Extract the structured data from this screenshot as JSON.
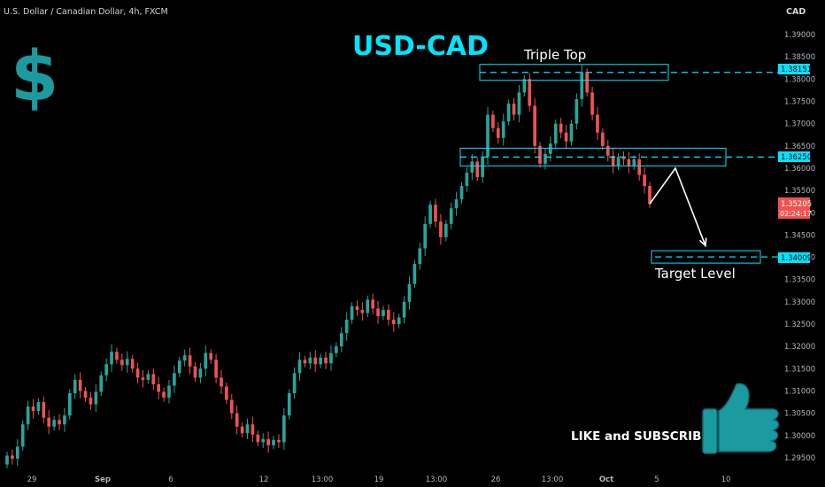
{
  "header": {
    "symbol_title": "U.S. Dollar / Canadian Dollar, 4h, FXCM",
    "currency": "CAD"
  },
  "annotations": {
    "pair": "USD-CAD",
    "dollar_symbol": "$",
    "triple_top": "Triple Top",
    "target_level": "Target Level",
    "cta": "LIKE and SUBSCRIBE"
  },
  "price_labels": {
    "resistance": "1.38151",
    "support": "1.36250",
    "last": "1.35205",
    "countdown": "02:24:17",
    "target": "1.34009"
  },
  "colors": {
    "bg": "#000000",
    "up": "#26a69a",
    "down": "#ef5350",
    "cyan": "#00e5ff",
    "teal_icon": "#1b9aa0",
    "text": "#d1d4dc"
  },
  "chart_data": {
    "type": "candlestick",
    "title": "U.S. Dollar / Canadian Dollar, 4h, FXCM",
    "y_unit": "CAD",
    "ylim": [
      1.293,
      1.3935
    ],
    "y_ticks": [
      "1.39000",
      "1.38500",
      "1.38000",
      "1.37500",
      "1.37000",
      "1.36500",
      "1.36000",
      "1.35500",
      "1.35000",
      "1.34500",
      "1.34000",
      "1.33500",
      "1.33000",
      "1.32500",
      "1.32000",
      "1.31500",
      "1.31000",
      "1.30500",
      "1.30000",
      "1.29500"
    ],
    "x_ticks": [
      "29",
      "Sep",
      "6",
      "12",
      "13:00",
      "19",
      "13:00",
      "26",
      "13:00",
      "Oct",
      "5",
      "10"
    ],
    "candles": [
      [
        1.2935,
        1.2955
      ],
      [
        1.2955,
        1.2948
      ],
      [
        1.2948,
        1.2975
      ],
      [
        1.2975,
        1.3025
      ],
      [
        1.3025,
        1.3065
      ],
      [
        1.3065,
        1.3055
      ],
      [
        1.3055,
        1.3075
      ],
      [
        1.3075,
        1.304
      ],
      [
        1.304,
        1.302
      ],
      [
        1.302,
        1.3035
      ],
      [
        1.3035,
        1.3025
      ],
      [
        1.3025,
        1.3045
      ],
      [
        1.3045,
        1.3095
      ],
      [
        1.3095,
        1.3125
      ],
      [
        1.3125,
        1.31
      ],
      [
        1.31,
        1.3085
      ],
      [
        1.3085,
        1.307
      ],
      [
        1.307,
        1.3098
      ],
      [
        1.3098,
        1.3135
      ],
      [
        1.3135,
        1.316
      ],
      [
        1.316,
        1.3188
      ],
      [
        1.3188,
        1.317
      ],
      [
        1.317,
        1.3158
      ],
      [
        1.3158,
        1.3172
      ],
      [
        1.3172,
        1.315
      ],
      [
        1.315,
        1.313
      ],
      [
        1.313,
        1.3125
      ],
      [
        1.3125,
        1.3138
      ],
      [
        1.3138,
        1.3115
      ],
      [
        1.3115,
        1.3098
      ],
      [
        1.3098,
        1.3085
      ],
      [
        1.3085,
        1.3112
      ],
      [
        1.3112,
        1.314
      ],
      [
        1.314,
        1.3168
      ],
      [
        1.3168,
        1.318
      ],
      [
        1.318,
        1.3155
      ],
      [
        1.3155,
        1.313
      ],
      [
        1.313,
        1.315
      ],
      [
        1.315,
        1.3185
      ],
      [
        1.3185,
        1.317
      ],
      [
        1.317,
        1.313
      ],
      [
        1.313,
        1.311
      ],
      [
        1.311,
        1.308
      ],
      [
        1.308,
        1.305
      ],
      [
        1.305,
        1.302
      ],
      [
        1.302,
        1.3005
      ],
      [
        1.3005,
        1.3025
      ],
      [
        1.3025,
        1.3002
      ],
      [
        1.3002,
        1.2985
      ],
      [
        1.2985,
        1.2992
      ],
      [
        1.2992,
        1.2978
      ],
      [
        1.2978,
        1.299
      ],
      [
        1.299,
        1.2985
      ],
      [
        1.2985,
        1.3045
      ],
      [
        1.3045,
        1.3095
      ],
      [
        1.3095,
        1.314
      ],
      [
        1.314,
        1.317
      ],
      [
        1.317,
        1.3162
      ],
      [
        1.3162,
        1.3175
      ],
      [
        1.3175,
        1.316
      ],
      [
        1.316,
        1.3175
      ],
      [
        1.3175,
        1.3162
      ],
      [
        1.3162,
        1.3185
      ],
      [
        1.3185,
        1.32
      ],
      [
        1.32,
        1.323
      ],
      [
        1.323,
        1.326
      ],
      [
        1.326,
        1.329
      ],
      [
        1.329,
        1.3282
      ],
      [
        1.3282,
        1.3275
      ],
      [
        1.3275,
        1.3305
      ],
      [
        1.3305,
        1.3285
      ],
      [
        1.3285,
        1.3268
      ],
      [
        1.3268,
        1.3282
      ],
      [
        1.3282,
        1.326
      ],
      [
        1.326,
        1.325
      ],
      [
        1.325,
        1.3265
      ],
      [
        1.3265,
        1.33
      ],
      [
        1.33,
        1.334
      ],
      [
        1.334,
        1.3385
      ],
      [
        1.3385,
        1.342
      ],
      [
        1.342,
        1.3475
      ],
      [
        1.3475,
        1.3518
      ],
      [
        1.3518,
        1.348
      ],
      [
        1.348,
        1.3445
      ],
      [
        1.3445,
        1.3475
      ],
      [
        1.3475,
        1.351
      ],
      [
        1.351,
        1.353
      ],
      [
        1.353,
        1.356
      ],
      [
        1.356,
        1.359
      ],
      [
        1.359,
        1.3615
      ],
      [
        1.3615,
        1.358
      ],
      [
        1.358,
        1.3625
      ],
      [
        1.3625,
        1.372
      ],
      [
        1.372,
        1.369
      ],
      [
        1.369,
        1.3668
      ],
      [
        1.3668,
        1.3705
      ],
      [
        1.3705,
        1.3745
      ],
      [
        1.3745,
        1.372
      ],
      [
        1.372,
        1.377
      ],
      [
        1.377,
        1.38
      ],
      [
        1.38,
        1.374
      ],
      [
        1.374,
        1.365
      ],
      [
        1.365,
        1.361
      ],
      [
        1.361,
        1.3632
      ],
      [
        1.3632,
        1.3655
      ],
      [
        1.3655,
        1.37
      ],
      [
        1.37,
        1.368
      ],
      [
        1.368,
        1.366
      ],
      [
        1.366,
        1.37
      ],
      [
        1.37,
        1.3755
      ],
      [
        1.3755,
        1.3815
      ],
      [
        1.3815,
        1.377
      ],
      [
        1.377,
        1.372
      ],
      [
        1.372,
        1.368
      ],
      [
        1.368,
        1.365
      ],
      [
        1.365,
        1.3628
      ],
      [
        1.3628,
        1.3605
      ],
      [
        1.3605,
        1.3625
      ],
      [
        1.3625,
        1.362
      ],
      [
        1.362,
        1.3605
      ],
      [
        1.3605,
        1.362
      ],
      [
        1.362,
        1.3585
      ],
      [
        1.3585,
        1.356
      ],
      [
        1.356,
        1.352
      ]
    ],
    "levels": {
      "resistance": 1.38151,
      "support": 1.3625,
      "target": 1.34009,
      "last": 1.35205
    },
    "projection": [
      [
        1.352,
        1.36
      ],
      [
        1.36,
        1.341
      ]
    ]
  }
}
